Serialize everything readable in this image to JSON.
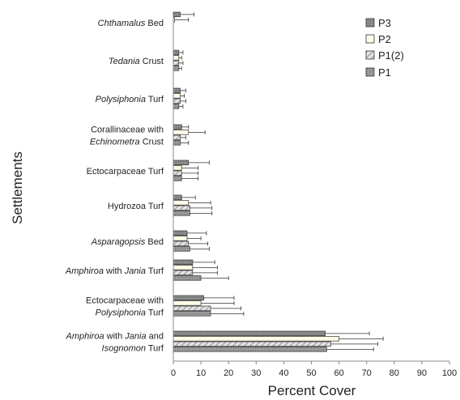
{
  "chart_data": {
    "type": "bar",
    "orientation": "horizontal",
    "xlabel": "Percent Cover",
    "ylabel": "Settlements",
    "xlim": [
      0,
      100
    ],
    "xticks": [
      0,
      10,
      20,
      30,
      40,
      50,
      60,
      70,
      80,
      90,
      100
    ],
    "legend_position": "top-right",
    "grid": false,
    "categories": [
      [
        {
          "t": "Chthamalus",
          "i": true
        },
        {
          "t": " Bed",
          "i": false
        }
      ],
      [
        {
          "t": "Tedania",
          "i": true
        },
        {
          "t": " Crust",
          "i": false
        }
      ],
      [
        {
          "t": "Polysiphonia",
          "i": true
        },
        {
          "t": " Turf",
          "i": false
        }
      ],
      [
        [
          {
            "t": "Corallinaceae with",
            "i": false
          }
        ],
        [
          {
            "t": "Echinometra",
            "i": true
          },
          {
            "t": " Crust",
            "i": false
          }
        ]
      ],
      [
        {
          "t": "Ectocarpaceae Turf",
          "i": false
        }
      ],
      [
        {
          "t": "Hydrozoa Turf",
          "i": false
        }
      ],
      [
        {
          "t": "Asparagopsis",
          "i": true
        },
        {
          "t": " Bed",
          "i": false
        }
      ],
      [
        {
          "t": "Amphiroa",
          "i": true
        },
        {
          "t": " with ",
          "i": false
        },
        {
          "t": "Jania",
          "i": true
        },
        {
          "t": " Turf",
          "i": false
        }
      ],
      [
        [
          {
            "t": "Ectocarpaceae with",
            "i": false
          }
        ],
        [
          {
            "t": "Polysiphonia",
            "i": true
          },
          {
            "t": " Turf",
            "i": false
          }
        ]
      ],
      [
        [
          {
            "t": "Amphiroa",
            "i": true
          },
          {
            "t": " with ",
            "i": false
          },
          {
            "t": "Jania",
            "i": true
          },
          {
            "t": " and",
            "i": false
          }
        ],
        [
          {
            "t": "Isognomon",
            "i": true
          },
          {
            "t": " Turf",
            "i": false
          }
        ]
      ]
    ],
    "series": [
      {
        "name": "P3",
        "fill": "#8f8f8f",
        "pattern": "dots",
        "values": [
          2.5,
          2,
          2.5,
          3,
          5.5,
          3,
          5,
          7,
          11,
          55
        ],
        "errors": [
          5,
          1.5,
          2,
          2.5,
          7.5,
          5,
          7,
          8,
          11,
          16
        ]
      },
      {
        "name": "P2",
        "fill": "#fdfbe6",
        "pattern": "none",
        "values": [
          0.5,
          2,
          2.5,
          5.5,
          3,
          5.5,
          5,
          7,
          10,
          60
        ],
        "errors": [
          5,
          1,
          1.5,
          6,
          6,
          8,
          5,
          9,
          12,
          16
        ]
      },
      {
        "name": "P1(2)",
        "fill": "#d8d8d8",
        "pattern": "hatch",
        "values": [
          0,
          2,
          2.5,
          2.5,
          3,
          6,
          5.5,
          7,
          13.5,
          57
        ],
        "errors": [
          0,
          1.5,
          2,
          2,
          6,
          8,
          7,
          9,
          11,
          17
        ]
      },
      {
        "name": "P1",
        "fill": "#9a9a9a",
        "pattern": "dots",
        "values": [
          0,
          2,
          2,
          2.5,
          3,
          6,
          6,
          10,
          13.5,
          55.5
        ],
        "errors": [
          0,
          1,
          1.5,
          3,
          6,
          8,
          7,
          10,
          12,
          17
        ]
      }
    ]
  }
}
